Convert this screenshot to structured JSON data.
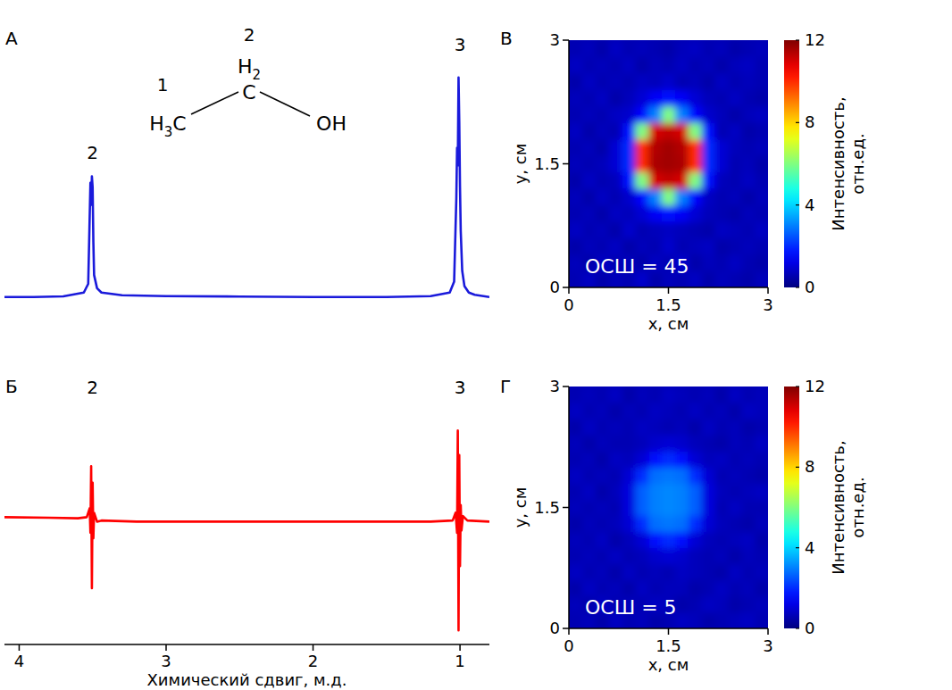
{
  "chart_data": [
    {
      "type": "line",
      "panel_label": "А",
      "x": [
        4.1,
        3.9,
        3.7,
        3.56,
        3.53,
        3.515,
        3.51,
        3.505,
        3.5,
        3.495,
        3.49,
        3.47,
        3.44,
        3.3,
        3.0,
        2.5,
        2.0,
        1.5,
        1.2,
        1.07,
        1.04,
        1.025,
        1.02,
        1.015,
        1.01,
        1.005,
        1.0,
        0.995,
        0.985,
        0.97,
        0.94,
        0.9,
        0.8
      ],
      "series": [
        {
          "color": "#1a1adb",
          "values": [
            0,
            0,
            0.003,
            0.02,
            0.06,
            0.52,
            0.42,
            0.55,
            0.5,
            0.25,
            0.1,
            0.04,
            0.02,
            0.008,
            0.004,
            0.002,
            0,
            0,
            0.004,
            0.02,
            0.07,
            0.45,
            0.68,
            0.6,
            1.0,
            0.8,
            0.5,
            0.3,
            0.12,
            0.05,
            0.02,
            0.01,
            0
          ]
        }
      ],
      "xlim": [
        4.1,
        0.8
      ],
      "ylim": [
        -0.05,
        1.15
      ],
      "tick_labels": false,
      "annotations": [
        {
          "text": "2",
          "x": 3.5,
          "y": 0.63
        },
        {
          "text": "3",
          "x": 1.0,
          "y": 1.12
        }
      ],
      "structure": {
        "groups": [
          "H3C",
          "H2",
          "C",
          "OH"
        ],
        "numbers": [
          "1",
          "2"
        ]
      }
    },
    {
      "type": "line",
      "panel_label": "Б",
      "x": [
        4.1,
        3.8,
        3.6,
        3.54,
        3.52,
        3.515,
        3.51,
        3.505,
        3.5,
        3.495,
        3.49,
        3.47,
        3.44,
        3.2,
        2.5,
        1.8,
        1.2,
        1.05,
        1.03,
        1.02,
        1.015,
        1.01,
        1.005,
        1.0,
        0.995,
        0.99,
        0.98,
        0.95,
        0.8
      ],
      "series": [
        {
          "color": "#ff0000",
          "values": [
            0.04,
            0.035,
            0.03,
            0.04,
            0.12,
            -0.1,
            0.5,
            -0.6,
            0.35,
            -0.15,
            0.08,
            0.0,
            0.01,
            0.0,
            0.0,
            0.0,
            0.0,
            0.01,
            0.08,
            -0.1,
            0.82,
            -0.98,
            0.6,
            -0.4,
            0.15,
            -0.08,
            0.05,
            0.01,
            0.0
          ]
        }
      ],
      "xlim": [
        4.1,
        0.8
      ],
      "ylim": [
        -1.05,
        1.0
      ],
      "xticks": [
        4,
        3,
        2,
        1
      ],
      "tick_labels": "x",
      "x_label": "Химический сдвиг, м.д.",
      "annotations": [
        {
          "text": "2",
          "x": 3.5,
          "y": 1.15
        },
        {
          "text": "3",
          "x": 1.0,
          "y": 1.15
        }
      ]
    },
    {
      "type": "heatmap",
      "panel_label": "В",
      "x": [
        0.1,
        0.3,
        0.5,
        0.7,
        0.9,
        1.1,
        1.3,
        1.5,
        1.7,
        1.9,
        2.1,
        2.3,
        2.5,
        2.7,
        2.9
      ],
      "y": [
        0.1,
        0.3,
        0.5,
        0.7,
        0.9,
        1.1,
        1.3,
        1.5,
        1.7,
        1.9,
        2.1,
        2.3,
        2.5,
        2.7,
        2.9
      ],
      "z": [
        [
          0.6,
          0.8,
          0.5,
          0.7,
          0.6,
          0.9,
          0.5,
          0.7,
          0.6,
          0.8,
          0.5,
          0.7,
          0.6,
          0.5,
          0.7
        ],
        [
          0.7,
          0.5,
          0.8,
          0.6,
          0.7,
          0.5,
          0.8,
          0.6,
          0.9,
          0.5,
          0.7,
          0.6,
          0.8,
          0.6,
          0.5
        ],
        [
          0.5,
          0.7,
          0.6,
          0.8,
          0.5,
          0.7,
          0.6,
          0.9,
          0.6,
          0.7,
          0.8,
          0.5,
          0.6,
          0.7,
          0.6
        ],
        [
          0.8,
          0.6,
          0.7,
          0.5,
          0.9,
          0.6,
          0.7,
          0.8,
          0.7,
          0.6,
          0.5,
          0.8,
          0.7,
          0.6,
          0.8
        ],
        [
          0.6,
          0.7,
          0.5,
          0.8,
          0.7,
          1.0,
          1.4,
          1.6,
          1.4,
          1.0,
          0.7,
          0.6,
          0.5,
          0.7,
          0.6
        ],
        [
          0.7,
          0.5,
          0.8,
          0.6,
          0.9,
          1.5,
          3.0,
          6.0,
          3.0,
          1.5,
          0.8,
          0.6,
          0.7,
          0.5,
          0.7
        ],
        [
          0.5,
          0.8,
          0.6,
          0.7,
          1.6,
          6.0,
          11.0,
          11.2,
          11.0,
          6.0,
          1.6,
          0.7,
          0.6,
          0.8,
          0.6
        ],
        [
          0.7,
          0.6,
          0.7,
          1.0,
          2.0,
          10.0,
          11.5,
          11.6,
          11.5,
          10.0,
          2.0,
          1.0,
          0.6,
          0.7,
          0.5
        ],
        [
          0.6,
          0.7,
          0.5,
          1.0,
          2.0,
          10.0,
          11.4,
          11.6,
          11.4,
          10.0,
          2.0,
          1.0,
          0.7,
          0.6,
          0.7
        ],
        [
          0.8,
          0.5,
          0.7,
          0.6,
          1.6,
          6.0,
          11.0,
          11.2,
          11.0,
          6.0,
          1.6,
          0.6,
          0.8,
          0.5,
          0.6
        ],
        [
          0.6,
          0.7,
          0.6,
          0.8,
          0.9,
          1.5,
          3.0,
          6.0,
          3.0,
          1.5,
          0.9,
          0.7,
          0.5,
          0.7,
          0.8
        ],
        [
          0.7,
          0.6,
          0.8,
          0.5,
          0.7,
          1.0,
          1.4,
          1.6,
          1.4,
          1.0,
          0.7,
          0.6,
          0.8,
          0.6,
          0.5
        ],
        [
          0.5,
          0.8,
          0.6,
          0.7,
          0.6,
          0.8,
          0.7,
          0.9,
          0.6,
          0.7,
          0.5,
          0.8,
          0.6,
          0.7,
          0.6
        ],
        [
          0.8,
          0.6,
          0.7,
          0.6,
          0.8,
          0.5,
          0.7,
          0.6,
          0.8,
          0.6,
          0.7,
          0.5,
          0.7,
          0.8,
          0.6
        ],
        [
          0.6,
          0.7,
          0.5,
          0.8,
          0.6,
          0.7,
          0.6,
          0.5,
          0.7,
          0.8,
          0.6,
          0.7,
          0.5,
          0.6,
          0.7
        ]
      ],
      "xlim": [
        0,
        3
      ],
      "ylim": [
        0,
        3
      ],
      "xticks": [
        0,
        1.5,
        3
      ],
      "yticks": [
        0,
        1.5,
        3
      ],
      "x_label": "x, см",
      "y_label": "y, см",
      "colorbar": {
        "label": "Интенсивность, отн.ед.",
        "range": [
          0,
          12
        ],
        "ticks": [
          0,
          4,
          8,
          12
        ]
      },
      "snr_label": "ОСШ = 45"
    },
    {
      "type": "heatmap",
      "panel_label": "Г",
      "x": [
        0.1,
        0.3,
        0.5,
        0.7,
        0.9,
        1.1,
        1.3,
        1.5,
        1.7,
        1.9,
        2.1,
        2.3,
        2.5,
        2.7,
        2.9
      ],
      "y": [
        0.1,
        0.3,
        0.5,
        0.7,
        0.9,
        1.1,
        1.3,
        1.5,
        1.7,
        1.9,
        2.1,
        2.3,
        2.5,
        2.7,
        2.9
      ],
      "z": [
        [
          0.6,
          0.7,
          0.5,
          0.8,
          0.6,
          0.7,
          0.5,
          0.6,
          0.8,
          0.7,
          0.5,
          0.6,
          0.7,
          0.8,
          0.6
        ],
        [
          0.7,
          0.5,
          0.8,
          0.6,
          0.7,
          0.6,
          0.8,
          0.7,
          0.5,
          0.6,
          0.8,
          0.7,
          0.5,
          0.6,
          0.7
        ],
        [
          0.5,
          0.8,
          0.6,
          0.7,
          0.5,
          0.8,
          0.6,
          0.7,
          0.7,
          0.5,
          0.6,
          0.8,
          0.6,
          0.7,
          0.5
        ],
        [
          0.8,
          0.6,
          0.7,
          0.5,
          0.8,
          0.6,
          0.7,
          0.6,
          0.8,
          0.7,
          0.6,
          0.5,
          0.8,
          0.6,
          0.7
        ],
        [
          0.6,
          0.7,
          0.6,
          0.8,
          0.6,
          0.7,
          0.9,
          1.0,
          0.9,
          0.7,
          0.6,
          0.7,
          0.5,
          0.7,
          0.6
        ],
        [
          0.7,
          0.6,
          0.8,
          0.5,
          0.7,
          1.0,
          1.6,
          2.0,
          1.6,
          1.0,
          0.7,
          0.6,
          0.7,
          0.8,
          0.5
        ],
        [
          0.5,
          0.7,
          0.6,
          0.7,
          1.0,
          2.0,
          2.8,
          2.9,
          2.8,
          2.0,
          1.0,
          0.7,
          0.6,
          0.5,
          0.7
        ],
        [
          0.7,
          0.6,
          0.7,
          0.6,
          1.1,
          2.6,
          3.0,
          3.1,
          3.0,
          2.6,
          1.1,
          0.6,
          0.8,
          0.6,
          0.6
        ],
        [
          0.6,
          0.8,
          0.5,
          0.7,
          1.1,
          2.6,
          3.0,
          3.1,
          3.0,
          2.6,
          1.1,
          0.7,
          0.6,
          0.7,
          0.8
        ],
        [
          0.8,
          0.6,
          0.7,
          0.6,
          1.0,
          2.0,
          2.8,
          2.9,
          2.8,
          2.0,
          1.0,
          0.6,
          0.7,
          0.6,
          0.5
        ],
        [
          0.6,
          0.7,
          0.5,
          0.8,
          0.7,
          1.0,
          1.6,
          2.0,
          1.6,
          1.0,
          0.7,
          0.8,
          0.6,
          0.7,
          0.6
        ],
        [
          0.7,
          0.5,
          0.7,
          0.6,
          0.6,
          0.7,
          0.9,
          1.0,
          0.9,
          0.7,
          0.6,
          0.5,
          0.7,
          0.6,
          0.8
        ],
        [
          0.5,
          0.8,
          0.6,
          0.7,
          0.6,
          0.8,
          0.7,
          0.6,
          0.7,
          0.5,
          0.8,
          0.6,
          0.7,
          0.5,
          0.6
        ],
        [
          0.8,
          0.6,
          0.7,
          0.5,
          0.7,
          0.6,
          0.8,
          0.7,
          0.6,
          0.8,
          0.6,
          0.7,
          0.5,
          0.8,
          0.7
        ],
        [
          0.6,
          0.7,
          0.6,
          0.8,
          0.5,
          0.7,
          0.6,
          0.8,
          0.7,
          0.6,
          0.7,
          0.5,
          0.8,
          0.6,
          0.7
        ]
      ],
      "xlim": [
        0,
        3
      ],
      "ylim": [
        0,
        3
      ],
      "xticks": [
        0,
        1.5,
        3
      ],
      "yticks": [
        0,
        1.5,
        3
      ],
      "x_label": "x, см",
      "y_label": "y, см",
      "colorbar": {
        "label": "Интенсивность, отн.ед.",
        "range": [
          0,
          12
        ],
        "ticks": [
          0,
          4,
          8,
          12
        ]
      },
      "snr_label": "ОСШ = 5"
    }
  ]
}
